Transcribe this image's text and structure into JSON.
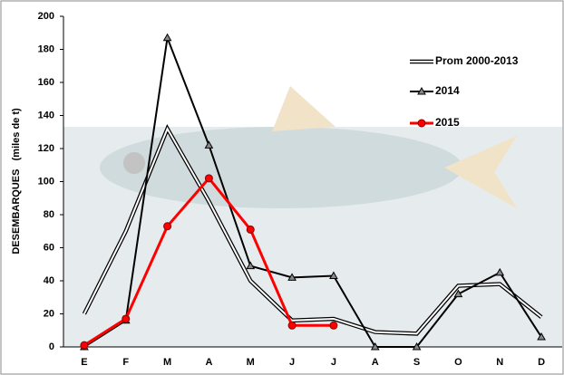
{
  "chart_data": {
    "type": "line",
    "y_label": "DESEMBARQUES   (miles de t)",
    "categories": [
      "E",
      "F",
      "M",
      "A",
      "M",
      "J",
      "J",
      "A",
      "S",
      "O",
      "N",
      "D"
    ],
    "series": [
      {
        "name": "Prom 2000-2013",
        "color": "#ffffff",
        "values": [
          20,
          70,
          132,
          88,
          40,
          16,
          17,
          9,
          8,
          37,
          38,
          18
        ]
      },
      {
        "name": "2014",
        "color": "#000000",
        "values": [
          0,
          16,
          187,
          122,
          49,
          42,
          43,
          0,
          0,
          32,
          45,
          6
        ]
      },
      {
        "name": "2015",
        "color": "#ff0000",
        "values": [
          1,
          17,
          73,
          102,
          71,
          13,
          13,
          null,
          null,
          null,
          null,
          null
        ]
      }
    ],
    "ylim": [
      0,
      200
    ],
    "yticks": [
      0,
      20,
      40,
      60,
      80,
      100,
      120,
      140,
      160,
      180,
      200
    ],
    "grid": false,
    "legend": "upper right"
  }
}
